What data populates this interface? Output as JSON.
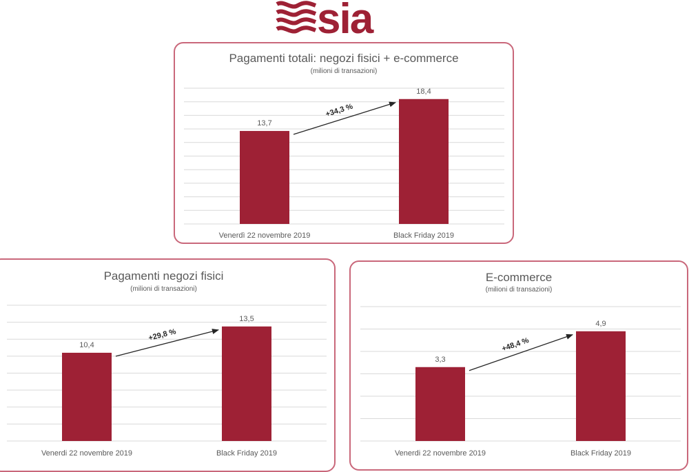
{
  "logo_text": "sia",
  "colors": {
    "bar": "#9e2135",
    "border": "#c9677a",
    "grid": "#d9d9d9",
    "text": "#595959",
    "arrow": "#262626"
  },
  "chart_data": [
    {
      "type": "bar",
      "title": "Pagamenti totali: negozi fisici + e-commerce",
      "subtitle": "(milioni di transazioni)",
      "categories": [
        "Venerdì 22 novembre 2019",
        "Black Friday 2019"
      ],
      "values": [
        13.7,
        18.4
      ],
      "value_labels": [
        "13,7",
        "18,4"
      ],
      "annotation": "+34,3 %",
      "ylim": [
        0,
        20
      ],
      "grid_step": 2,
      "grid": true
    },
    {
      "type": "bar",
      "title": "Pagamenti negozi fisici",
      "subtitle": "(milioni di transazioni)",
      "categories": [
        "Venerdi 22 novembre 2019",
        "Black Friday 2019"
      ],
      "values": [
        10.4,
        13.5
      ],
      "value_labels": [
        "10,4",
        "13,5"
      ],
      "annotation": "+29,8 %",
      "ylim": [
        0,
        16
      ],
      "grid_step": 2,
      "grid": true
    },
    {
      "type": "bar",
      "title": "E-commerce",
      "subtitle": "(milioni di transazioni)",
      "categories": [
        "Venerdi 22 novembre 2019",
        "Black Friday 2019"
      ],
      "values": [
        3.3,
        4.9
      ],
      "value_labels": [
        "3,3",
        "4,9"
      ],
      "annotation": "+48,4 %",
      "ylim": [
        0,
        6
      ],
      "grid_step": 1,
      "grid": true
    }
  ]
}
